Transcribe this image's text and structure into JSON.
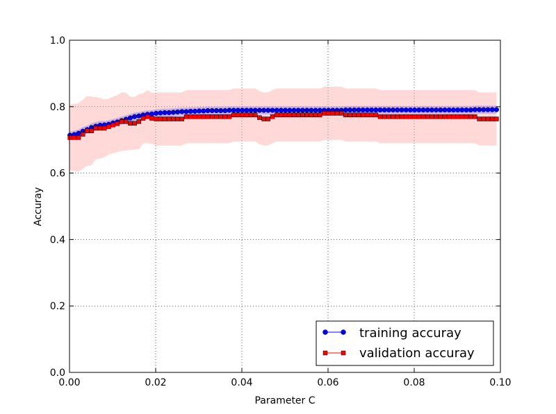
{
  "chart_data": {
    "type": "line",
    "xlabel": "Parameter C",
    "ylabel": "Accuray",
    "xlim": [
      0.0,
      0.1
    ],
    "ylim": [
      0.0,
      1.0
    ],
    "xticks": [
      0.0,
      0.02,
      0.04,
      0.06,
      0.08,
      0.1
    ],
    "xtick_labels": [
      "0.00",
      "0.02",
      "0.04",
      "0.06",
      "0.08",
      "0.10"
    ],
    "yticks": [
      0.0,
      0.2,
      0.4,
      0.6,
      0.8,
      1.0
    ],
    "ytick_labels": [
      "0.0",
      "0.2",
      "0.4",
      "0.6",
      "0.8",
      "1.0"
    ],
    "grid": true,
    "legend_position": "lower-right",
    "x": [
      0.0001,
      0.0011,
      0.0021,
      0.0031,
      0.0041,
      0.0051,
      0.0061,
      0.0071,
      0.0081,
      0.0091,
      0.0101,
      0.0111,
      0.0121,
      0.0131,
      0.0141,
      0.0151,
      0.0161,
      0.0171,
      0.0181,
      0.0191,
      0.0201,
      0.0211,
      0.0221,
      0.0231,
      0.0241,
      0.0251,
      0.0261,
      0.0271,
      0.0281,
      0.0291,
      0.0301,
      0.0311,
      0.0321,
      0.0331,
      0.0341,
      0.0351,
      0.0361,
      0.0371,
      0.0381,
      0.0391,
      0.0401,
      0.0411,
      0.0421,
      0.0431,
      0.0441,
      0.0451,
      0.0461,
      0.0471,
      0.0481,
      0.0491,
      0.0501,
      0.0511,
      0.0521,
      0.0531,
      0.0541,
      0.0551,
      0.0561,
      0.0571,
      0.0581,
      0.0591,
      0.0601,
      0.0611,
      0.0621,
      0.0631,
      0.0641,
      0.0651,
      0.0661,
      0.0671,
      0.0681,
      0.0691,
      0.0701,
      0.0711,
      0.0721,
      0.0731,
      0.0741,
      0.0751,
      0.0761,
      0.0771,
      0.0781,
      0.0791,
      0.0801,
      0.0811,
      0.0821,
      0.0831,
      0.0841,
      0.0851,
      0.0861,
      0.0871,
      0.0881,
      0.0891,
      0.0901,
      0.0911,
      0.0921,
      0.0931,
      0.0941,
      0.0951,
      0.0961,
      0.0971,
      0.0981,
      0.0991
    ],
    "series": [
      {
        "name": "training accuray",
        "color": "#0000ff",
        "marker": "circle",
        "values": [
          0.714,
          0.716,
          0.72,
          0.726,
          0.731,
          0.737,
          0.741,
          0.744,
          0.745,
          0.747,
          0.751,
          0.754,
          0.758,
          0.762,
          0.766,
          0.77,
          0.772,
          0.775,
          0.777,
          0.778,
          0.78,
          0.781,
          0.782,
          0.782,
          0.783,
          0.784,
          0.785,
          0.785,
          0.786,
          0.786,
          0.787,
          0.787,
          0.788,
          0.788,
          0.788,
          0.788,
          0.788,
          0.789,
          0.789,
          0.789,
          0.789,
          0.789,
          0.789,
          0.789,
          0.789,
          0.789,
          0.789,
          0.789,
          0.789,
          0.789,
          0.789,
          0.789,
          0.789,
          0.789,
          0.789,
          0.789,
          0.789,
          0.789,
          0.789,
          0.789,
          0.789,
          0.789,
          0.789,
          0.789,
          0.79,
          0.79,
          0.79,
          0.79,
          0.79,
          0.79,
          0.79,
          0.79,
          0.79,
          0.79,
          0.79,
          0.79,
          0.79,
          0.79,
          0.79,
          0.79,
          0.79,
          0.79,
          0.79,
          0.79,
          0.79,
          0.79,
          0.79,
          0.79,
          0.79,
          0.79,
          0.79,
          0.79,
          0.79,
          0.79,
          0.791,
          0.791,
          0.791,
          0.791,
          0.791,
          0.791
        ],
        "band_low": [
          0.703,
          0.704,
          0.709,
          0.713,
          0.719,
          0.724,
          0.728,
          0.731,
          0.733,
          0.735,
          0.739,
          0.742,
          0.746,
          0.75,
          0.754,
          0.758,
          0.76,
          0.763,
          0.765,
          0.766,
          0.768,
          0.769,
          0.77,
          0.77,
          0.771,
          0.772,
          0.773,
          0.773,
          0.774,
          0.774,
          0.775,
          0.775,
          0.776,
          0.776,
          0.776,
          0.776,
          0.776,
          0.777,
          0.777,
          0.777,
          0.777,
          0.777,
          0.777,
          0.777,
          0.777,
          0.777,
          0.777,
          0.777,
          0.777,
          0.777,
          0.777,
          0.777,
          0.777,
          0.777,
          0.777,
          0.777,
          0.777,
          0.777,
          0.777,
          0.777,
          0.777,
          0.777,
          0.777,
          0.777,
          0.778,
          0.778,
          0.778,
          0.778,
          0.778,
          0.778,
          0.778,
          0.778,
          0.778,
          0.778,
          0.778,
          0.778,
          0.778,
          0.778,
          0.778,
          0.778,
          0.778,
          0.778,
          0.778,
          0.778,
          0.778,
          0.778,
          0.778,
          0.778,
          0.778,
          0.778,
          0.778,
          0.778,
          0.778,
          0.778,
          0.779,
          0.779,
          0.779,
          0.779,
          0.779,
          0.779
        ],
        "band_high": [
          0.725,
          0.728,
          0.731,
          0.739,
          0.743,
          0.75,
          0.754,
          0.757,
          0.757,
          0.759,
          0.763,
          0.766,
          0.77,
          0.774,
          0.778,
          0.782,
          0.784,
          0.787,
          0.789,
          0.79,
          0.792,
          0.793,
          0.794,
          0.794,
          0.795,
          0.796,
          0.797,
          0.797,
          0.798,
          0.798,
          0.799,
          0.799,
          0.8,
          0.8,
          0.8,
          0.8,
          0.8,
          0.801,
          0.801,
          0.801,
          0.801,
          0.801,
          0.801,
          0.801,
          0.801,
          0.801,
          0.801,
          0.801,
          0.801,
          0.801,
          0.801,
          0.801,
          0.801,
          0.801,
          0.801,
          0.801,
          0.801,
          0.801,
          0.801,
          0.801,
          0.801,
          0.801,
          0.801,
          0.801,
          0.802,
          0.802,
          0.802,
          0.802,
          0.802,
          0.802,
          0.802,
          0.802,
          0.802,
          0.802,
          0.802,
          0.802,
          0.802,
          0.802,
          0.802,
          0.802,
          0.802,
          0.802,
          0.802,
          0.802,
          0.802,
          0.802,
          0.802,
          0.802,
          0.802,
          0.802,
          0.802,
          0.802,
          0.802,
          0.802,
          0.803,
          0.803,
          0.803,
          0.803,
          0.803,
          0.803
        ],
        "band_color": "#8080ff"
      },
      {
        "name": "validation accuray",
        "color": "#ff0000",
        "marker": "square",
        "values": [
          0.707,
          0.707,
          0.707,
          0.717,
          0.727,
          0.727,
          0.735,
          0.735,
          0.735,
          0.74,
          0.745,
          0.749,
          0.755,
          0.755,
          0.75,
          0.75,
          0.755,
          0.765,
          0.77,
          0.765,
          0.763,
          0.763,
          0.763,
          0.763,
          0.763,
          0.763,
          0.763,
          0.77,
          0.77,
          0.77,
          0.77,
          0.77,
          0.77,
          0.77,
          0.77,
          0.77,
          0.77,
          0.77,
          0.775,
          0.775,
          0.775,
          0.775,
          0.775,
          0.775,
          0.767,
          0.763,
          0.763,
          0.77,
          0.775,
          0.775,
          0.775,
          0.775,
          0.775,
          0.775,
          0.775,
          0.775,
          0.775,
          0.775,
          0.775,
          0.78,
          0.78,
          0.78,
          0.78,
          0.78,
          0.775,
          0.775,
          0.775,
          0.775,
          0.775,
          0.775,
          0.775,
          0.775,
          0.77,
          0.77,
          0.77,
          0.77,
          0.77,
          0.77,
          0.77,
          0.77,
          0.77,
          0.77,
          0.77,
          0.77,
          0.77,
          0.77,
          0.77,
          0.77,
          0.77,
          0.77,
          0.77,
          0.77,
          0.77,
          0.77,
          0.77,
          0.763,
          0.763,
          0.763,
          0.763,
          0.763
        ],
        "band_low": [
          0.608,
          0.606,
          0.604,
          0.613,
          0.622,
          0.624,
          0.641,
          0.644,
          0.648,
          0.656,
          0.66,
          0.663,
          0.667,
          0.668,
          0.67,
          0.671,
          0.672,
          0.69,
          0.69,
          0.689,
          0.683,
          0.683,
          0.683,
          0.683,
          0.683,
          0.683,
          0.683,
          0.69,
          0.69,
          0.69,
          0.69,
          0.69,
          0.69,
          0.69,
          0.69,
          0.69,
          0.69,
          0.69,
          0.695,
          0.695,
          0.695,
          0.695,
          0.695,
          0.695,
          0.687,
          0.683,
          0.683,
          0.69,
          0.695,
          0.695,
          0.695,
          0.695,
          0.695,
          0.695,
          0.695,
          0.695,
          0.695,
          0.695,
          0.695,
          0.7,
          0.7,
          0.7,
          0.7,
          0.7,
          0.695,
          0.695,
          0.695,
          0.695,
          0.695,
          0.695,
          0.695,
          0.695,
          0.69,
          0.69,
          0.69,
          0.69,
          0.69,
          0.69,
          0.69,
          0.69,
          0.69,
          0.69,
          0.69,
          0.69,
          0.69,
          0.69,
          0.69,
          0.69,
          0.69,
          0.69,
          0.69,
          0.69,
          0.69,
          0.69,
          0.69,
          0.683,
          0.683,
          0.683,
          0.683,
          0.683
        ],
        "band_high": [
          0.806,
          0.808,
          0.81,
          0.821,
          0.832,
          0.83,
          0.829,
          0.826,
          0.822,
          0.824,
          0.83,
          0.835,
          0.843,
          0.842,
          0.83,
          0.829,
          0.838,
          0.84,
          0.85,
          0.841,
          0.843,
          0.843,
          0.843,
          0.843,
          0.843,
          0.843,
          0.843,
          0.85,
          0.85,
          0.85,
          0.85,
          0.85,
          0.85,
          0.85,
          0.85,
          0.85,
          0.85,
          0.85,
          0.855,
          0.855,
          0.855,
          0.855,
          0.855,
          0.855,
          0.847,
          0.843,
          0.843,
          0.85,
          0.855,
          0.855,
          0.855,
          0.855,
          0.855,
          0.855,
          0.855,
          0.855,
          0.855,
          0.855,
          0.855,
          0.86,
          0.86,
          0.86,
          0.86,
          0.86,
          0.855,
          0.855,
          0.855,
          0.855,
          0.855,
          0.855,
          0.855,
          0.855,
          0.85,
          0.85,
          0.85,
          0.85,
          0.85,
          0.85,
          0.85,
          0.85,
          0.85,
          0.85,
          0.85,
          0.85,
          0.85,
          0.85,
          0.85,
          0.85,
          0.85,
          0.85,
          0.85,
          0.85,
          0.85,
          0.85,
          0.85,
          0.843,
          0.843,
          0.843,
          0.843,
          0.843
        ],
        "band_color": "#ff9999"
      }
    ]
  }
}
